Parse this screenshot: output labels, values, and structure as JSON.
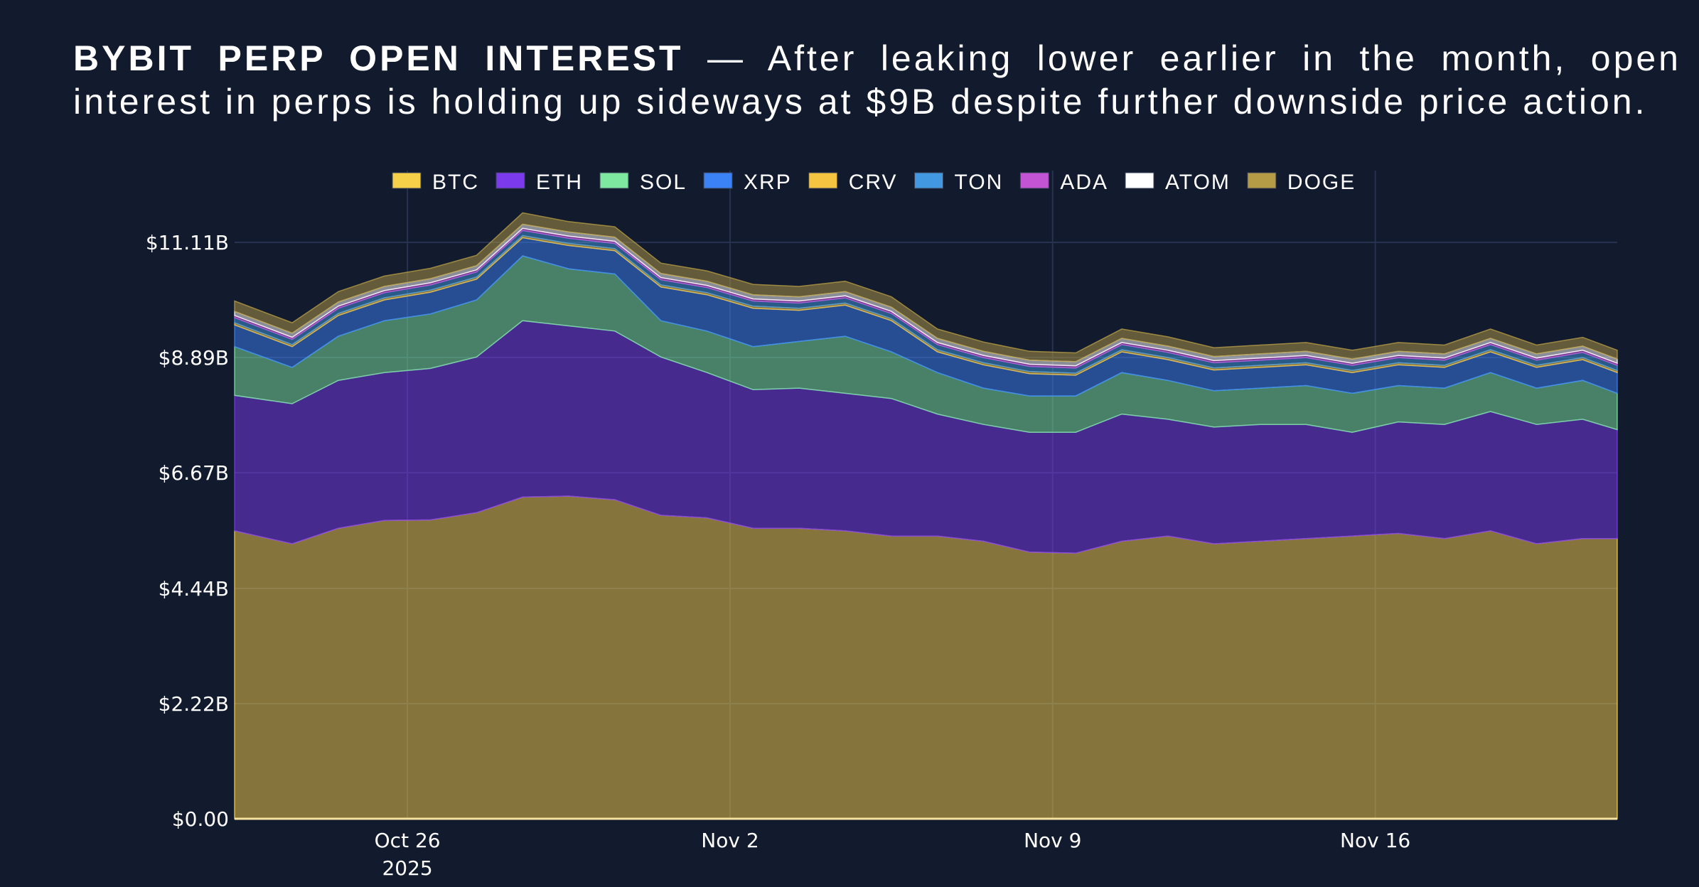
{
  "title": {
    "bold": "BYBIT PERP OPEN INTEREST",
    "rest": " — After leaking lower earlier in the month, open interest in perps is holding up sideways at $9B despite further downside price action."
  },
  "chart_data": {
    "type": "area",
    "stacked": true,
    "title": "BYBIT PERP OPEN INTEREST — After leaking lower earlier in the month, open interest in perps is holding up sideways at $9B despite further downside price action.",
    "xlabel": "",
    "ylabel": "",
    "legend_position": "top",
    "grid": true,
    "ylim": [
      0,
      12.4
    ],
    "yticks": [
      0,
      2.22,
      4.44,
      6.67,
      8.89,
      11.11
    ],
    "ytick_labels": [
      "$0.00",
      "$2.22B",
      "$4.44B",
      "$6.67B",
      "$8.89B",
      "$11.11B"
    ],
    "xticks": [
      "2025-10-26",
      "2025-11-02",
      "2025-11-09",
      "2025-11-16"
    ],
    "xtick_labels": [
      "Oct 26",
      "Nov 2",
      "Nov 9",
      "Nov 16"
    ],
    "xtick_sublabel": "2025",
    "xlim": [
      "2025-10-22T06:00",
      "2025-11-21T06:00"
    ],
    "unit": "USD billions",
    "x": [
      "2025-10-22",
      "2025-10-23",
      "2025-10-24",
      "2025-10-25",
      "2025-10-26",
      "2025-10-27",
      "2025-10-28",
      "2025-10-29",
      "2025-10-30",
      "2025-10-31",
      "2025-11-01",
      "2025-11-02",
      "2025-11-03",
      "2025-11-04",
      "2025-11-05",
      "2025-11-06",
      "2025-11-07",
      "2025-11-08",
      "2025-11-09",
      "2025-11-10",
      "2025-11-11",
      "2025-11-12",
      "2025-11-13",
      "2025-11-14",
      "2025-11-15",
      "2025-11-16",
      "2025-11-17",
      "2025-11-18",
      "2025-11-19",
      "2025-11-20",
      "2025-11-21"
    ],
    "series": [
      {
        "name": "BTC",
        "color": "#f7d04a",
        "values": [
          5.55,
          5.3,
          5.6,
          5.75,
          5.76,
          5.9,
          6.2,
          6.22,
          6.15,
          5.85,
          5.8,
          5.6,
          5.6,
          5.55,
          5.45,
          5.45,
          5.35,
          5.14,
          5.12,
          5.35,
          5.45,
          5.3,
          5.35,
          5.4,
          5.45,
          5.5,
          5.4,
          5.55,
          5.3,
          5.4,
          5.4
        ]
      },
      {
        "name": "ETH",
        "color": "#7c3aed",
        "values": [
          2.61,
          2.7,
          2.85,
          2.85,
          2.92,
          3.0,
          3.4,
          3.28,
          3.25,
          3.05,
          2.8,
          2.67,
          2.7,
          2.65,
          2.65,
          2.35,
          2.25,
          2.31,
          2.33,
          2.45,
          2.25,
          2.25,
          2.25,
          2.2,
          2.0,
          2.15,
          2.2,
          2.3,
          2.3,
          2.3,
          2.1
        ]
      },
      {
        "name": "SOL",
        "color": "#7ee8a0",
        "values": [
          0.94,
          0.7,
          0.85,
          1.0,
          1.05,
          1.1,
          1.25,
          1.1,
          1.1,
          0.7,
          0.8,
          0.83,
          0.9,
          1.1,
          0.9,
          0.8,
          0.7,
          0.7,
          0.7,
          0.8,
          0.75,
          0.7,
          0.7,
          0.75,
          0.75,
          0.7,
          0.7,
          0.75,
          0.7,
          0.75,
          0.7
        ]
      },
      {
        "name": "XRP",
        "color": "#3b82f6",
        "values": [
          0.42,
          0.4,
          0.4,
          0.4,
          0.42,
          0.4,
          0.35,
          0.45,
          0.45,
          0.65,
          0.7,
          0.74,
          0.6,
          0.6,
          0.6,
          0.4,
          0.45,
          0.43,
          0.4,
          0.4,
          0.4,
          0.4,
          0.4,
          0.4,
          0.4,
          0.4,
          0.4,
          0.4,
          0.4,
          0.4,
          0.4
        ]
      },
      {
        "name": "CRV",
        "color": "#f5c542",
        "values": [
          0.04,
          0.04,
          0.04,
          0.04,
          0.04,
          0.04,
          0.04,
          0.04,
          0.04,
          0.04,
          0.04,
          0.04,
          0.04,
          0.04,
          0.04,
          0.04,
          0.04,
          0.04,
          0.04,
          0.04,
          0.04,
          0.04,
          0.04,
          0.04,
          0.04,
          0.04,
          0.04,
          0.04,
          0.04,
          0.04,
          0.04
        ]
      },
      {
        "name": "TON",
        "color": "#4299e1",
        "values": [
          0.1,
          0.1,
          0.1,
          0.1,
          0.1,
          0.1,
          0.1,
          0.1,
          0.1,
          0.1,
          0.1,
          0.1,
          0.1,
          0.1,
          0.1,
          0.1,
          0.1,
          0.1,
          0.1,
          0.1,
          0.1,
          0.1,
          0.1,
          0.1,
          0.1,
          0.1,
          0.1,
          0.1,
          0.1,
          0.1,
          0.1
        ]
      },
      {
        "name": "ADA",
        "color": "#c355d5",
        "values": [
          0.04,
          0.04,
          0.04,
          0.04,
          0.04,
          0.04,
          0.04,
          0.04,
          0.04,
          0.04,
          0.04,
          0.04,
          0.04,
          0.04,
          0.04,
          0.04,
          0.04,
          0.04,
          0.04,
          0.04,
          0.04,
          0.04,
          0.04,
          0.04,
          0.04,
          0.04,
          0.04,
          0.04,
          0.04,
          0.04,
          0.04
        ]
      },
      {
        "name": "ATOM",
        "color": "#ffffff",
        "values": [
          0.08,
          0.08,
          0.08,
          0.08,
          0.08,
          0.08,
          0.08,
          0.08,
          0.08,
          0.08,
          0.08,
          0.08,
          0.08,
          0.08,
          0.08,
          0.08,
          0.08,
          0.08,
          0.08,
          0.08,
          0.08,
          0.08,
          0.08,
          0.08,
          0.08,
          0.08,
          0.08,
          0.08,
          0.08,
          0.08,
          0.08
        ]
      },
      {
        "name": "DOGE",
        "color": "#b49b45",
        "values": [
          0.2,
          0.2,
          0.2,
          0.2,
          0.2,
          0.2,
          0.22,
          0.2,
          0.2,
          0.2,
          0.2,
          0.2,
          0.2,
          0.2,
          0.2,
          0.18,
          0.18,
          0.17,
          0.17,
          0.18,
          0.18,
          0.17,
          0.17,
          0.17,
          0.17,
          0.17,
          0.17,
          0.18,
          0.17,
          0.17,
          0.17
        ]
      }
    ]
  }
}
